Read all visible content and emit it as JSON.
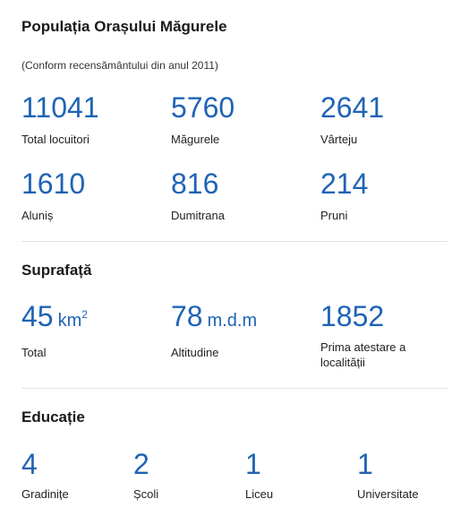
{
  "population": {
    "title": "Populația Orașului Măgurele",
    "subtitle": "(Conform recensământului din anul 2011)",
    "stats": [
      {
        "value": "11041",
        "label": "Total locuitori"
      },
      {
        "value": "5760",
        "label": "Măgurele"
      },
      {
        "value": "2641",
        "label": "Vârteju"
      },
      {
        "value": "1610",
        "label": "Aluniș"
      },
      {
        "value": "816",
        "label": "Dumitrana"
      },
      {
        "value": "214",
        "label": "Pruni"
      }
    ]
  },
  "area": {
    "title": "Suprafață",
    "stats": [
      {
        "value": "45",
        "unit": "km",
        "unit_sup": "2",
        "label": "Total"
      },
      {
        "value": "78",
        "unit": "m.d.m",
        "label": "Altitudine"
      },
      {
        "value": "1852",
        "label_line1": "Prima atestare a",
        "label_line2": "localității"
      }
    ]
  },
  "education": {
    "title": "Educație",
    "stats": [
      {
        "value": "4",
        "label": "Gradinițe"
      },
      {
        "value": "2",
        "label": "Școli"
      },
      {
        "value": "1",
        "label": "Liceu"
      },
      {
        "value": "1",
        "label": "Universitate"
      }
    ]
  },
  "colors": {
    "accent": "#1f63b5",
    "text": "#222222",
    "divider": "#e2e2e2"
  }
}
